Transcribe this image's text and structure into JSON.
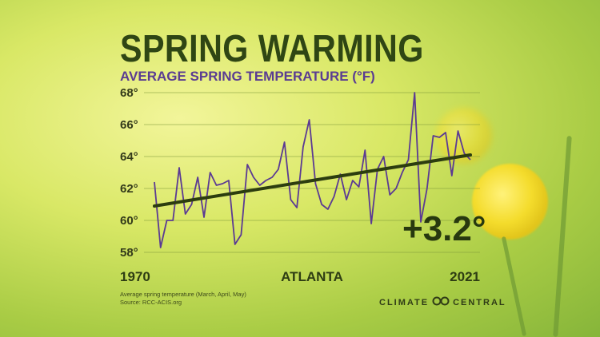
{
  "title": "SPRING WARMING",
  "subtitle": "AVERAGE SPRING TEMPERATURE (°F)",
  "annotation": "+3.2°",
  "notes": {
    "line1": "Average spring temperature (March, April, May)",
    "line2": "Source: RCC-ACIS.org"
  },
  "brand": {
    "left": "CLIMATE",
    "right": "CENTRAL",
    "logo": "climate-central-logo"
  },
  "colors": {
    "title": "#2f4614",
    "subtitle": "#5a3c92",
    "series": "#5b3a93",
    "trend": "#2c3d0f"
  },
  "chart_data": {
    "type": "line",
    "title": "SPRING WARMING",
    "subtitle": "AVERAGE SPRING TEMPERATURE (°F)",
    "location": "ATLANTA",
    "x_tick_labels": [
      "1970",
      "2021"
    ],
    "y_tick_labels": [
      "58°",
      "60°",
      "62°",
      "64°",
      "66°",
      "68°"
    ],
    "ylim": [
      57.8,
      68
    ],
    "xlim": [
      1970,
      2021
    ],
    "grid": true,
    "series": [
      {
        "x": [
          1970,
          1971,
          1972,
          1973,
          1974,
          1975,
          1976,
          1977,
          1978,
          1979,
          1980,
          1981,
          1982,
          1983,
          1984,
          1985,
          1986,
          1987,
          1988,
          1989,
          1990,
          1991,
          1992,
          1993,
          1994,
          1995,
          1996,
          1997,
          1998,
          1999,
          2000,
          2001,
          2002,
          2003,
          2004,
          2005,
          2006,
          2007,
          2008,
          2009,
          2010,
          2011,
          2012,
          2013,
          2014,
          2015,
          2016,
          2017,
          2018,
          2019,
          2020,
          2021
        ],
        "values": [
          62.4,
          58.3,
          60.0,
          60.0,
          63.3,
          60.4,
          61.0,
          62.7,
          60.2,
          63.0,
          62.2,
          62.3,
          62.5,
          58.5,
          59.1,
          63.5,
          62.7,
          62.2,
          62.5,
          62.7,
          63.2,
          64.9,
          61.3,
          60.8,
          64.6,
          66.3,
          62.3,
          61.0,
          60.7,
          61.5,
          62.9,
          61.3,
          62.5,
          62.1,
          64.4,
          59.8,
          63.2,
          64.0,
          61.6,
          62.0,
          63.0,
          63.8,
          68.0,
          59.9,
          62.0,
          65.3,
          65.2,
          65.5,
          62.8,
          65.6,
          64.2,
          63.8
        ]
      }
    ],
    "trend": {
      "start": [
        1970,
        60.9
      ],
      "end": [
        2021,
        64.1
      ],
      "change_label": "+3.2°"
    }
  }
}
